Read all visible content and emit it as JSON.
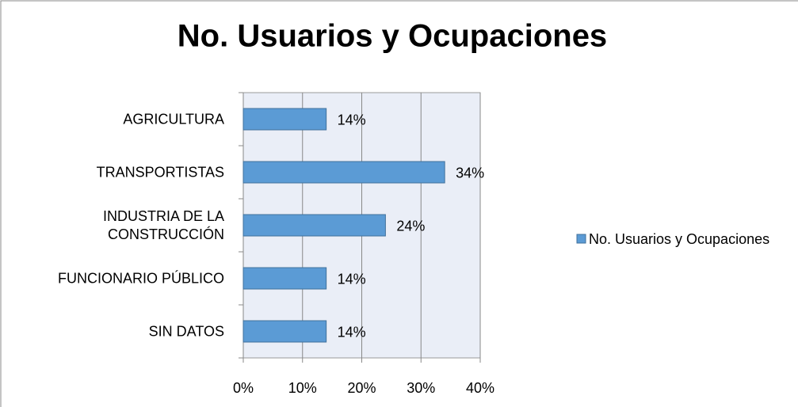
{
  "chart_data": {
    "type": "bar",
    "orientation": "horizontal",
    "title": "No. Usuarios y Ocupaciones",
    "categories": [
      "AGRICULTURA",
      "TRANSPORTISTAS",
      "INDUSTRIA DE LA CONSTRUCCIÓN",
      "FUNCIONARIO PÚBLICO",
      "SIN DATOS"
    ],
    "series": [
      {
        "name": "No. Usuarios y Ocupaciones",
        "color": "#5b9bd5",
        "values": [
          14,
          34,
          24,
          14,
          14
        ],
        "value_labels": [
          "14%",
          "34%",
          "24%",
          "14%",
          "14%"
        ]
      }
    ],
    "xlim": [
      0,
      40
    ],
    "xticks": [
      {
        "value": 0,
        "label": "0%"
      },
      {
        "value": 10,
        "label": "10%"
      },
      {
        "value": 20,
        "label": "20%"
      },
      {
        "value": 30,
        "label": "30%"
      },
      {
        "value": 40,
        "label": "40%"
      }
    ],
    "grid": true,
    "legend": "right"
  }
}
